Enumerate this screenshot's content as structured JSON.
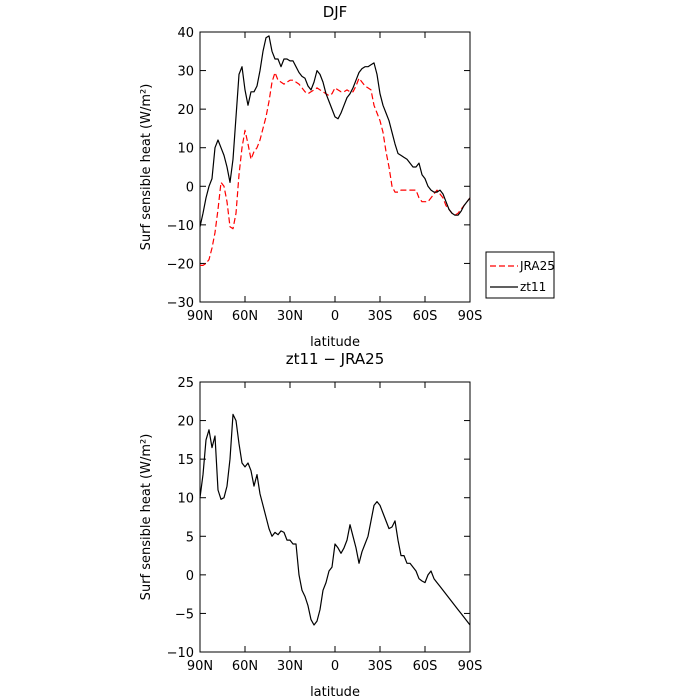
{
  "chart_data": [
    {
      "type": "line",
      "title": "DJF",
      "xlabel": "latitude",
      "ylabel": "Surf sensible heat (W/m²)",
      "xlim": [
        90,
        -90
      ],
      "ylim": [
        -30,
        40
      ],
      "xticks": [
        90,
        60,
        30,
        0,
        -30,
        -60,
        -90
      ],
      "xtick_labels": [
        "90N",
        "60N",
        "30N",
        "0",
        "30S",
        "60S",
        "90S"
      ],
      "yticks": [
        -30,
        -20,
        -10,
        0,
        10,
        20,
        30,
        40
      ],
      "ytick_labels": [
        "−30",
        "−20",
        "−10",
        "0",
        "10",
        "20",
        "30",
        "40"
      ],
      "legend_position": "right",
      "series": [
        {
          "name": "JRA25",
          "color": "#ff0000",
          "style": "dashed",
          "x": [
            90,
            88,
            86,
            84,
            82,
            80,
            78,
            76,
            74,
            72,
            70,
            68,
            66,
            64,
            62,
            60,
            58,
            56,
            54,
            52,
            50,
            48,
            46,
            44,
            42,
            40,
            38,
            36,
            34,
            32,
            30,
            28,
            26,
            24,
            22,
            20,
            18,
            16,
            14,
            12,
            10,
            8,
            6,
            4,
            2,
            0,
            -2,
            -4,
            -6,
            -8,
            -10,
            -12,
            -14,
            -16,
            -18,
            -20,
            -22,
            -24,
            -26,
            -28,
            -30,
            -32,
            -34,
            -36,
            -38,
            -40,
            -42,
            -44,
            -46,
            -48,
            -50,
            -52,
            -54,
            -56,
            -58,
            -60,
            -62,
            -64,
            -66,
            -68,
            -70,
            -72,
            -74,
            -76,
            -78,
            -80,
            -82,
            -84,
            -86,
            -88,
            -90
          ],
          "values": [
            -20.5,
            -20.5,
            -20,
            -19,
            -16,
            -12,
            -6,
            1,
            0,
            -4,
            -10.5,
            -11,
            -7,
            3,
            10,
            14.5,
            11,
            7,
            9,
            10,
            12,
            15,
            18,
            22,
            27,
            29.5,
            27.5,
            27,
            26.5,
            27,
            27.5,
            27.5,
            27,
            26.5,
            25.5,
            24.5,
            24,
            24.5,
            25,
            25.5,
            25,
            24.5,
            24,
            23.5,
            24,
            25.5,
            25,
            24.5,
            24.5,
            25,
            24.5,
            24.5,
            26,
            28,
            27,
            26,
            25.5,
            25,
            21,
            19,
            17,
            14,
            9,
            5,
            0,
            -1.5,
            -1.5,
            -1,
            -1,
            -1,
            -1,
            -1,
            -1,
            -3,
            -4,
            -4,
            -4,
            -3,
            -2,
            -1,
            -2,
            -3,
            -5,
            -6,
            -7,
            -7.5,
            -7,
            -6,
            -5,
            -4,
            -3
          ]
        },
        {
          "name": "zt11",
          "color": "#000000",
          "style": "solid",
          "x": [
            90,
            88,
            86,
            84,
            82,
            80,
            78,
            76,
            74,
            72,
            70,
            68,
            66,
            64,
            62,
            60,
            58,
            56,
            54,
            52,
            50,
            48,
            46,
            44,
            42,
            40,
            38,
            36,
            34,
            32,
            30,
            28,
            26,
            24,
            22,
            20,
            18,
            16,
            14,
            12,
            10,
            8,
            6,
            4,
            2,
            0,
            -2,
            -4,
            -6,
            -8,
            -10,
            -12,
            -14,
            -16,
            -18,
            -20,
            -22,
            -24,
            -26,
            -28,
            -30,
            -32,
            -34,
            -36,
            -38,
            -40,
            -42,
            -44,
            -46,
            -48,
            -50,
            -52,
            -54,
            -56,
            -58,
            -60,
            -62,
            -64,
            -66,
            -68,
            -70,
            -72,
            -74,
            -76,
            -78,
            -80,
            -82,
            -84,
            -86,
            -88,
            -90
          ],
          "values": [
            -10.5,
            -7,
            -3,
            0,
            2,
            10,
            12,
            10,
            8,
            5,
            1,
            7,
            18,
            29,
            31,
            25,
            21,
            24.5,
            24.5,
            26,
            30,
            35,
            38.5,
            39,
            35,
            33,
            33,
            31,
            33,
            33,
            32.5,
            32.5,
            31,
            29.5,
            28.5,
            28,
            26,
            25,
            27,
            30,
            29,
            27,
            24,
            22,
            20,
            18,
            17.5,
            19,
            21,
            23,
            24,
            25.5,
            27.5,
            29.5,
            30.5,
            31,
            31,
            31.5,
            32,
            29,
            24,
            21,
            19,
            17,
            14,
            11,
            8.5,
            8,
            7.5,
            7,
            6,
            5,
            5,
            6,
            3,
            2,
            0,
            -1,
            -1.5,
            -1.5,
            -1,
            -2,
            -4,
            -6,
            -7,
            -7.5,
            -7.5,
            -6.5,
            -5,
            -4,
            -3
          ]
        }
      ]
    },
    {
      "type": "line",
      "title": "zt11 − JRA25",
      "xlabel": "latitude",
      "ylabel": "Surf sensible heat (W/m²)",
      "xlim": [
        90,
        -90
      ],
      "ylim": [
        -10,
        25
      ],
      "xticks": [
        90,
        60,
        30,
        0,
        -30,
        -60,
        -90
      ],
      "xtick_labels": [
        "90N",
        "60N",
        "30N",
        "0",
        "30S",
        "60S",
        "90S"
      ],
      "yticks": [
        -10,
        -5,
        0,
        5,
        10,
        15,
        20,
        25
      ],
      "ytick_labels": [
        "−10",
        "−5",
        "0",
        "5",
        "10",
        "15",
        "20",
        "25"
      ],
      "series": [
        {
          "color": "#000000",
          "style": "solid",
          "x": [
            90,
            88,
            86,
            84,
            82,
            80,
            78,
            76,
            74,
            72,
            70,
            68,
            66,
            64,
            62,
            60,
            58,
            56,
            54,
            52,
            50,
            48,
            46,
            44,
            42,
            40,
            38,
            36,
            34,
            32,
            30,
            28,
            26,
            24,
            22,
            20,
            18,
            16,
            14,
            12,
            10,
            8,
            6,
            4,
            2,
            0,
            -2,
            -4,
            -6,
            -8,
            -10,
            -12,
            -14,
            -16,
            -18,
            -20,
            -22,
            -24,
            -26,
            -28,
            -30,
            -32,
            -34,
            -36,
            -38,
            -40,
            -42,
            -44,
            -46,
            -48,
            -50,
            -52,
            -54,
            -56,
            -58,
            -60,
            -62,
            -64,
            -66,
            -68,
            -70,
            -72,
            -74,
            -76,
            -78,
            -80,
            -82,
            -84,
            -86,
            -88,
            -90
          ],
          "values": [
            10,
            13,
            17.5,
            18.8,
            16.5,
            18,
            11,
            9.8,
            10,
            11.5,
            15,
            20.8,
            20,
            17,
            14.5,
            14,
            14.5,
            13.5,
            11.5,
            13,
            10.5,
            9,
            7.5,
            6,
            5,
            5.5,
            5.2,
            5.7,
            5.5,
            4.5,
            4.5,
            4,
            4,
            0,
            -2,
            -2.8,
            -4,
            -5.8,
            -6.5,
            -6,
            -4.5,
            -2,
            -1,
            0.5,
            1,
            4,
            3.5,
            2.8,
            3.5,
            4.5,
            6.5,
            5,
            3.5,
            1.5,
            3,
            4,
            5,
            7,
            9,
            9.5,
            9,
            8,
            7,
            6,
            6.2,
            7,
            4.5,
            2.5,
            2.5,
            1.5,
            1.5,
            1,
            0.5,
            -0.5,
            -0.8,
            -1,
            0,
            0.5,
            -0.5,
            -1,
            -1.5,
            -2,
            -2.5,
            -3,
            -3.5,
            -4,
            -4.5,
            -5,
            -5.5,
            -6,
            -6.5
          ]
        }
      ]
    }
  ]
}
